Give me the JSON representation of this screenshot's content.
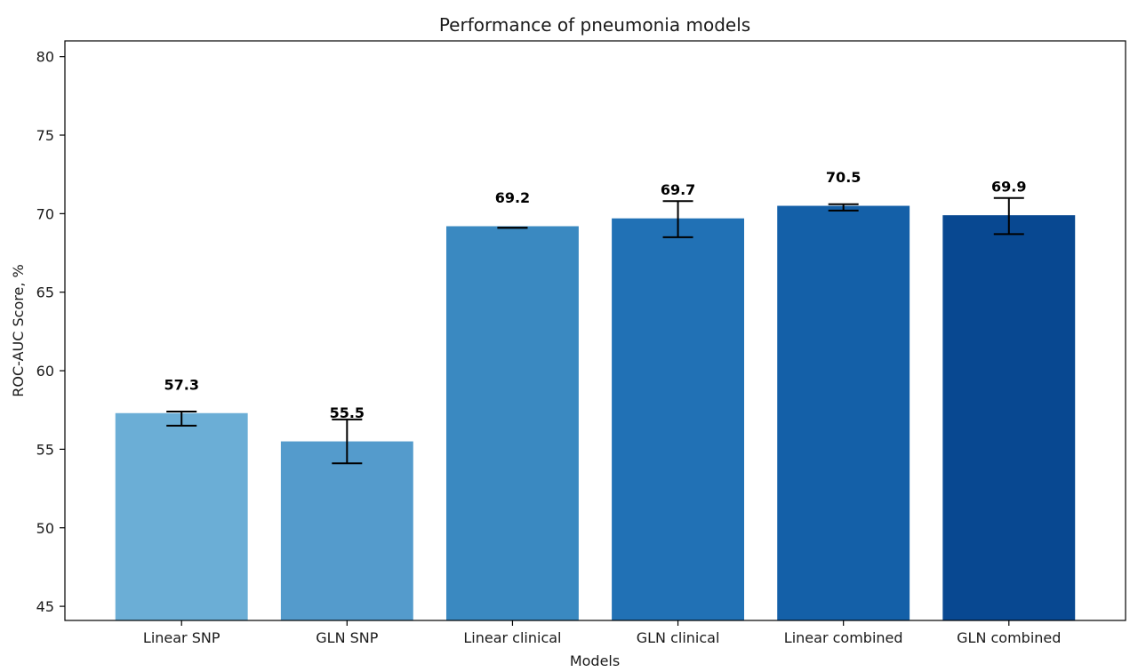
{
  "chart_data": {
    "type": "bar",
    "title": "Performance of pneumonia models",
    "xlabel": "Models",
    "ylabel": "ROC-AUC Score, %",
    "ylim": [
      44.1,
      81.0
    ],
    "yticks": [
      45,
      50,
      55,
      60,
      65,
      70,
      75,
      80
    ],
    "grid": false,
    "categories": [
      "Linear SNP",
      "GLN SNP",
      "Linear clinical",
      "GLN clinical",
      "Linear combined",
      "GLN combined"
    ],
    "values": [
      57.3,
      55.5,
      69.2,
      69.7,
      70.5,
      69.9
    ],
    "value_labels": [
      "57.3",
      "55.5",
      "69.2",
      "69.7",
      "70.5",
      "69.9"
    ],
    "error_bars": [
      {
        "low": 56.5,
        "high": 57.4
      },
      {
        "low": 54.1,
        "high": 56.9
      },
      {
        "low": 69.1,
        "high": 69.1
      },
      {
        "low": 68.5,
        "high": 70.8
      },
      {
        "low": 70.2,
        "high": 70.6
      },
      {
        "low": 68.7,
        "high": 71.0
      }
    ],
    "colors": [
      "#6baed6",
      "#549bcc",
      "#3a89c1",
      "#2171b5",
      "#1460a8",
      "#084891"
    ]
  }
}
